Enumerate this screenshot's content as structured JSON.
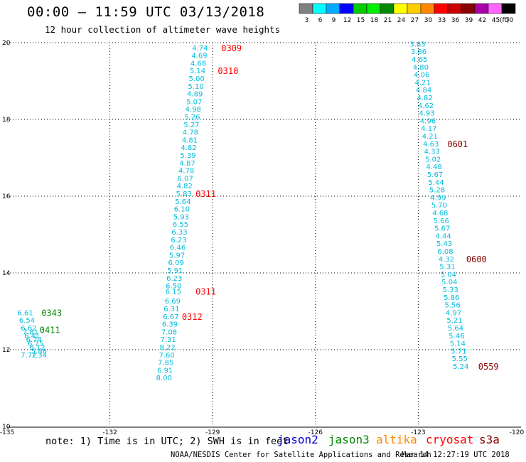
{
  "title": "00:00 – 11:59 UTC 03/13/2018",
  "subtitle": "12 hour collection of altimeter wave heights",
  "legend": {
    "unit": "(ft)",
    "bins": [
      {
        "label": "3",
        "color": "#808080"
      },
      {
        "label": "6",
        "color": "#00ffff"
      },
      {
        "label": "9",
        "color": "#00aaff"
      },
      {
        "label": "12",
        "color": "#0000ff"
      },
      {
        "label": "15",
        "color": "#00cc00"
      },
      {
        "label": "18",
        "color": "#00ee00"
      },
      {
        "label": "21",
        "color": "#008800"
      },
      {
        "label": "24",
        "color": "#ffff00"
      },
      {
        "label": "27",
        "color": "#ffcc00"
      },
      {
        "label": "30",
        "color": "#ff8800"
      },
      {
        "label": "33",
        "color": "#ff0000"
      },
      {
        "label": "36",
        "color": "#cc0000"
      },
      {
        "label": "39",
        "color": "#880000"
      },
      {
        "label": "42",
        "color": "#aa00aa"
      },
      {
        "label": "45",
        "color": "#ff66ff"
      },
      {
        "label": "70",
        "color": "#000000"
      }
    ]
  },
  "axes": {
    "lat_ticks": [
      "20",
      "18",
      "16",
      "14",
      "12",
      "10"
    ],
    "lon_ticks": [
      "-135",
      "-132",
      "-129",
      "-126",
      "-123",
      "-120"
    ],
    "lat_range": [
      10,
      20
    ],
    "lon_range": [
      -135,
      -120
    ]
  },
  "colors": {
    "wave_value": "#00bbdd",
    "jason2": "#0000cc",
    "jason3": "#008800",
    "altika": "#ff8800",
    "cryosat": "#ff0000",
    "s3a": "#880000"
  },
  "tracks": [
    {
      "satellite": "cryosat",
      "points": [
        [
          -129.6,
          19.8,
          "4.74"
        ],
        [
          -129.62,
          19.6,
          "4.69"
        ],
        [
          -129.65,
          19.4,
          "4.68"
        ],
        [
          -129.67,
          19.2,
          "5.14"
        ],
        [
          -129.7,
          19.0,
          "5.00"
        ],
        [
          -129.72,
          18.8,
          "5.10"
        ],
        [
          -129.75,
          18.6,
          "4.89"
        ],
        [
          -129.77,
          18.4,
          "5.07"
        ],
        [
          -129.8,
          18.2,
          "4.98"
        ],
        [
          -129.83,
          18.0,
          "5.26"
        ],
        [
          -129.85,
          17.8,
          "5.27"
        ],
        [
          -129.88,
          17.6,
          "4.78"
        ],
        [
          -129.9,
          17.4,
          "4.81"
        ],
        [
          -129.93,
          17.2,
          "4.82"
        ],
        [
          -129.95,
          17.0,
          "5.39"
        ],
        [
          -129.97,
          16.8,
          "4.87"
        ],
        [
          -130.0,
          16.6,
          "4.78"
        ],
        [
          -130.03,
          16.4,
          "6.07"
        ],
        [
          -130.05,
          16.2,
          "4.82"
        ],
        [
          -130.07,
          16.0,
          "5.83"
        ],
        [
          -130.1,
          15.8,
          "5.64"
        ],
        [
          -130.13,
          15.6,
          "6.10"
        ],
        [
          -130.15,
          15.4,
          "5.93"
        ],
        [
          -130.17,
          15.2,
          "6.55"
        ],
        [
          -130.2,
          15.0,
          "6.33"
        ],
        [
          -130.22,
          14.8,
          "6.23"
        ],
        [
          -130.25,
          14.6,
          "6.46"
        ],
        [
          -130.27,
          14.4,
          "5.97"
        ],
        [
          -130.3,
          14.2,
          "6.09"
        ],
        [
          -130.33,
          14.0,
          "5.91"
        ],
        [
          -130.35,
          13.8,
          "6.23"
        ],
        [
          -130.37,
          13.6,
          "6.50"
        ],
        [
          -130.38,
          13.45,
          "6.15"
        ],
        [
          -130.4,
          13.2,
          "6.69"
        ],
        [
          -130.43,
          13.0,
          "6.31"
        ],
        [
          -130.45,
          12.8,
          "6.67"
        ],
        [
          -130.48,
          12.6,
          "6.39"
        ],
        [
          -130.5,
          12.4,
          "7.08"
        ],
        [
          -130.53,
          12.2,
          "7.31"
        ],
        [
          -130.55,
          12.0,
          "8.22"
        ],
        [
          -130.57,
          11.8,
          "7.60"
        ],
        [
          -130.6,
          11.6,
          "7.85"
        ],
        [
          -130.62,
          11.4,
          "6.91"
        ],
        [
          -130.65,
          11.2,
          "8.00"
        ]
      ],
      "times": [
        {
          "lon": -128.75,
          "lat": 19.8,
          "text": "0309"
        },
        {
          "lon": -128.85,
          "lat": 19.2,
          "text": "0310"
        },
        {
          "lon": -129.5,
          "lat": 16.0,
          "text": "0311"
        },
        {
          "lon": -129.5,
          "lat": 13.45,
          "text": "0311"
        },
        {
          "lon": -129.9,
          "lat": 12.8,
          "text": "0312"
        }
      ]
    },
    {
      "satellite": "s3a",
      "points": [
        [
          -123.25,
          19.9,
          "3.83"
        ],
        [
          -123.22,
          19.7,
          "3.86"
        ],
        [
          -123.19,
          19.5,
          "4.65"
        ],
        [
          -123.16,
          19.3,
          "4.80"
        ],
        [
          -123.13,
          19.1,
          "4.06"
        ],
        [
          -123.1,
          18.9,
          "4.21"
        ],
        [
          -123.07,
          18.7,
          "4.84"
        ],
        [
          -123.04,
          18.5,
          "4.82"
        ],
        [
          -123.01,
          18.3,
          "4.62"
        ],
        [
          -122.98,
          18.1,
          "4.93"
        ],
        [
          -122.95,
          17.9,
          "4.96"
        ],
        [
          -122.92,
          17.7,
          "4.17"
        ],
        [
          -122.89,
          17.5,
          "4.21"
        ],
        [
          -122.86,
          17.3,
          "4.63"
        ],
        [
          -122.83,
          17.1,
          "4.33"
        ],
        [
          -122.8,
          16.9,
          "5.02"
        ],
        [
          -122.77,
          16.7,
          "4.48"
        ],
        [
          -122.74,
          16.5,
          "5.67"
        ],
        [
          -122.71,
          16.3,
          "5.44"
        ],
        [
          -122.68,
          16.1,
          "5.28"
        ],
        [
          -122.65,
          15.9,
          "4.99"
        ],
        [
          -122.62,
          15.7,
          "5.70"
        ],
        [
          -122.59,
          15.5,
          "4.68"
        ],
        [
          -122.56,
          15.3,
          "5.66"
        ],
        [
          -122.53,
          15.1,
          "5.67"
        ],
        [
          -122.5,
          14.9,
          "4.44"
        ],
        [
          -122.47,
          14.7,
          "5.43"
        ],
        [
          -122.44,
          14.5,
          "6.08"
        ],
        [
          -122.41,
          14.3,
          "4.32"
        ],
        [
          -122.38,
          14.1,
          "5.31"
        ],
        [
          -122.35,
          13.9,
          "5.04"
        ],
        [
          -122.32,
          13.7,
          "5.04"
        ],
        [
          -122.29,
          13.5,
          "5.33"
        ],
        [
          -122.26,
          13.3,
          "5.86"
        ],
        [
          -122.23,
          13.1,
          "5.56"
        ],
        [
          -122.2,
          12.9,
          "4.97"
        ],
        [
          -122.17,
          12.7,
          "5.21"
        ],
        [
          -122.14,
          12.5,
          "5.64"
        ],
        [
          -122.11,
          12.3,
          "5.46"
        ],
        [
          -122.08,
          12.1,
          "5.14"
        ],
        [
          -122.05,
          11.9,
          "5.71"
        ],
        [
          -122.02,
          11.7,
          "5.55"
        ],
        [
          -121.99,
          11.5,
          "5.24"
        ]
      ],
      "times": [
        {
          "lon": -122.15,
          "lat": 17.3,
          "text": "0601"
        },
        {
          "lon": -121.6,
          "lat": 14.3,
          "text": "0600"
        },
        {
          "lon": -121.25,
          "lat": 11.5,
          "text": "0559"
        }
      ]
    },
    {
      "satellite": "jason3",
      "points": [
        [
          -134.7,
          12.9,
          "6.61"
        ],
        [
          -134.65,
          12.7,
          "6.54"
        ],
        [
          -134.6,
          12.5,
          "6.62"
        ],
        [
          -134.55,
          12.4,
          "7.81"
        ],
        [
          -134.5,
          12.3,
          "6.41"
        ],
        [
          -134.45,
          12.2,
          "6.74"
        ],
        [
          -134.4,
          12.1,
          "6.75"
        ],
        [
          -134.35,
          12.0,
          "6.12"
        ],
        [
          -134.3,
          11.9,
          "5.86"
        ],
        [
          -134.3,
          11.8,
          "7.34"
        ],
        [
          -134.6,
          11.8,
          "7.72"
        ]
      ],
      "times": [
        {
          "lon": -134.0,
          "lat": 12.9,
          "text": "0343"
        },
        {
          "lon": -134.05,
          "lat": 12.45,
          "text": "0411"
        }
      ]
    }
  ],
  "note": "note: 1) Time is in UTC; 2) SWH is in feet",
  "satellites": [
    {
      "key": "jason2",
      "label": "jason2"
    },
    {
      "key": "jason3",
      "label": "jason3"
    },
    {
      "key": "altika",
      "label": "altika"
    },
    {
      "key": "cryosat",
      "label": "cryosat"
    },
    {
      "key": "s3a",
      "label": "s3a"
    }
  ],
  "footer": {
    "credit": "NOAA/NESDIS Center for Satellite Applications and Research",
    "timestamp": "Mar 14 12:27:19 UTC 2018"
  }
}
